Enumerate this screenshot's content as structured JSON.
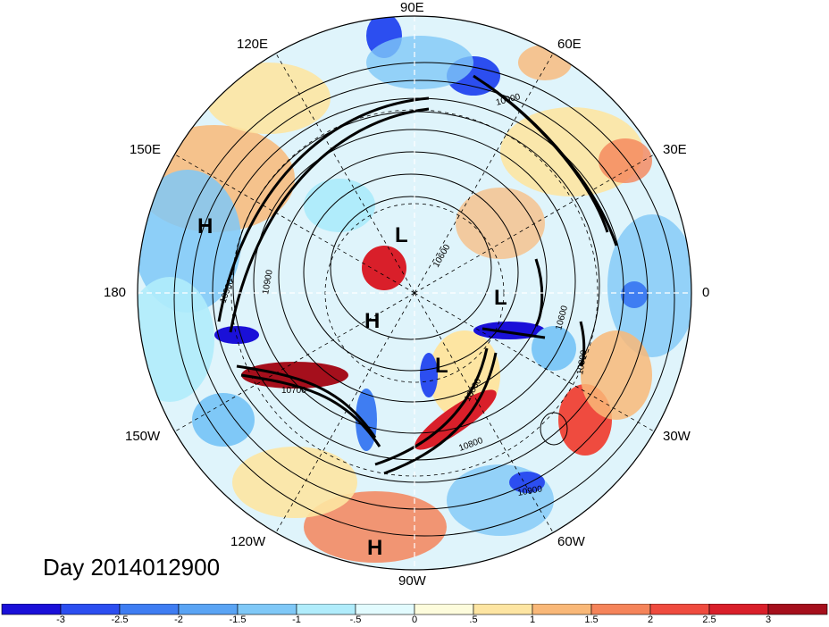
{
  "title": "Day 2014012900",
  "longitude_labels": [
    "90E",
    "60E",
    "30E",
    "0",
    "30W",
    "60W",
    "90W",
    "120W",
    "150W",
    "180",
    "150E",
    "120E"
  ],
  "pressure_centers": [
    "H",
    "L",
    "H",
    "L",
    "L",
    "H"
  ],
  "contour_labels": [
    "10900",
    "10900",
    "10800",
    "10600",
    "10800",
    "10900",
    "10900",
    "10700",
    "10800",
    "10600"
  ],
  "colorbar": {
    "ticks": [
      "-3",
      "-2.5",
      "-2",
      "-1.5",
      "-1",
      "-.5",
      "0",
      ".5",
      "1",
      "1.5",
      "2",
      "2.5",
      "3"
    ],
    "colors": [
      "#1a10d8",
      "#2c4ef0",
      "#3f7df2",
      "#5aa4f4",
      "#7fc8f7",
      "#b0ecfb",
      "#e2fbfe",
      "#fdfcdc",
      "#fde5a2",
      "#f9b878",
      "#f5845a",
      "#ef4b3f",
      "#d91f2a",
      "#a50f1c"
    ]
  }
}
